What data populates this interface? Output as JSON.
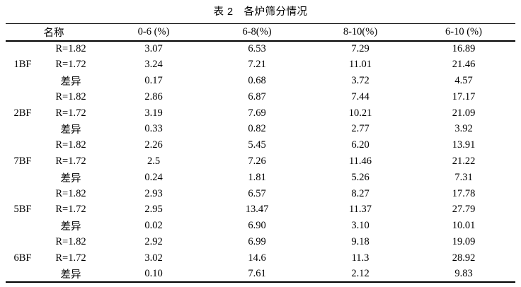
{
  "caption": "表 2　各炉筛分情况",
  "columns": [
    "名称",
    "0-6 (%)",
    "6-8(%)",
    "8-10(%)",
    "6-10 (%)"
  ],
  "groups": [
    {
      "name": "1BF",
      "rows": [
        {
          "label": "R=1.82",
          "values": [
            "3.07",
            "6.53",
            "7.29",
            "16.89"
          ]
        },
        {
          "label": "R=1.72",
          "values": [
            "3.24",
            "7.21",
            "11.01",
            "21.46"
          ]
        },
        {
          "label": "差异",
          "values": [
            "0.17",
            "0.68",
            "3.72",
            "4.57"
          ]
        }
      ]
    },
    {
      "name": "2BF",
      "rows": [
        {
          "label": "R=1.82",
          "values": [
            "2.86",
            "6.87",
            "7.44",
            "17.17"
          ]
        },
        {
          "label": "R=1.72",
          "values": [
            "3.19",
            "7.69",
            "10.21",
            "21.09"
          ]
        },
        {
          "label": "差异",
          "values": [
            "0.33",
            "0.82",
            "2.77",
            "3.92"
          ]
        }
      ]
    },
    {
      "name": "7BF",
      "rows": [
        {
          "label": "R=1.82",
          "values": [
            "2.26",
            "5.45",
            "6.20",
            "13.91"
          ]
        },
        {
          "label": "R=1.72",
          "values": [
            "2.5",
            "7.26",
            "11.46",
            "21.22"
          ]
        },
        {
          "label": "差异",
          "values": [
            "0.24",
            "1.81",
            "5.26",
            "7.31"
          ]
        }
      ]
    },
    {
      "name": "5BF",
      "rows": [
        {
          "label": "R=1.82",
          "values": [
            "2.93",
            "6.57",
            "8.27",
            "17.78"
          ]
        },
        {
          "label": "R=1.72",
          "values": [
            "2.95",
            "13.47",
            "11.37",
            "27.79"
          ]
        },
        {
          "label": "差异",
          "values": [
            "0.02",
            "6.90",
            "3.10",
            "10.01"
          ]
        }
      ]
    },
    {
      "name": "6BF",
      "rows": [
        {
          "label": "R=1.82",
          "values": [
            "2.92",
            "6.99",
            "9.18",
            "19.09"
          ]
        },
        {
          "label": "R=1.72",
          "values": [
            "3.02",
            "14.6",
            "11.3",
            "28.92"
          ]
        },
        {
          "label": "差异",
          "values": [
            "0.10",
            "7.61",
            "2.12",
            "9.83"
          ]
        }
      ]
    }
  ]
}
